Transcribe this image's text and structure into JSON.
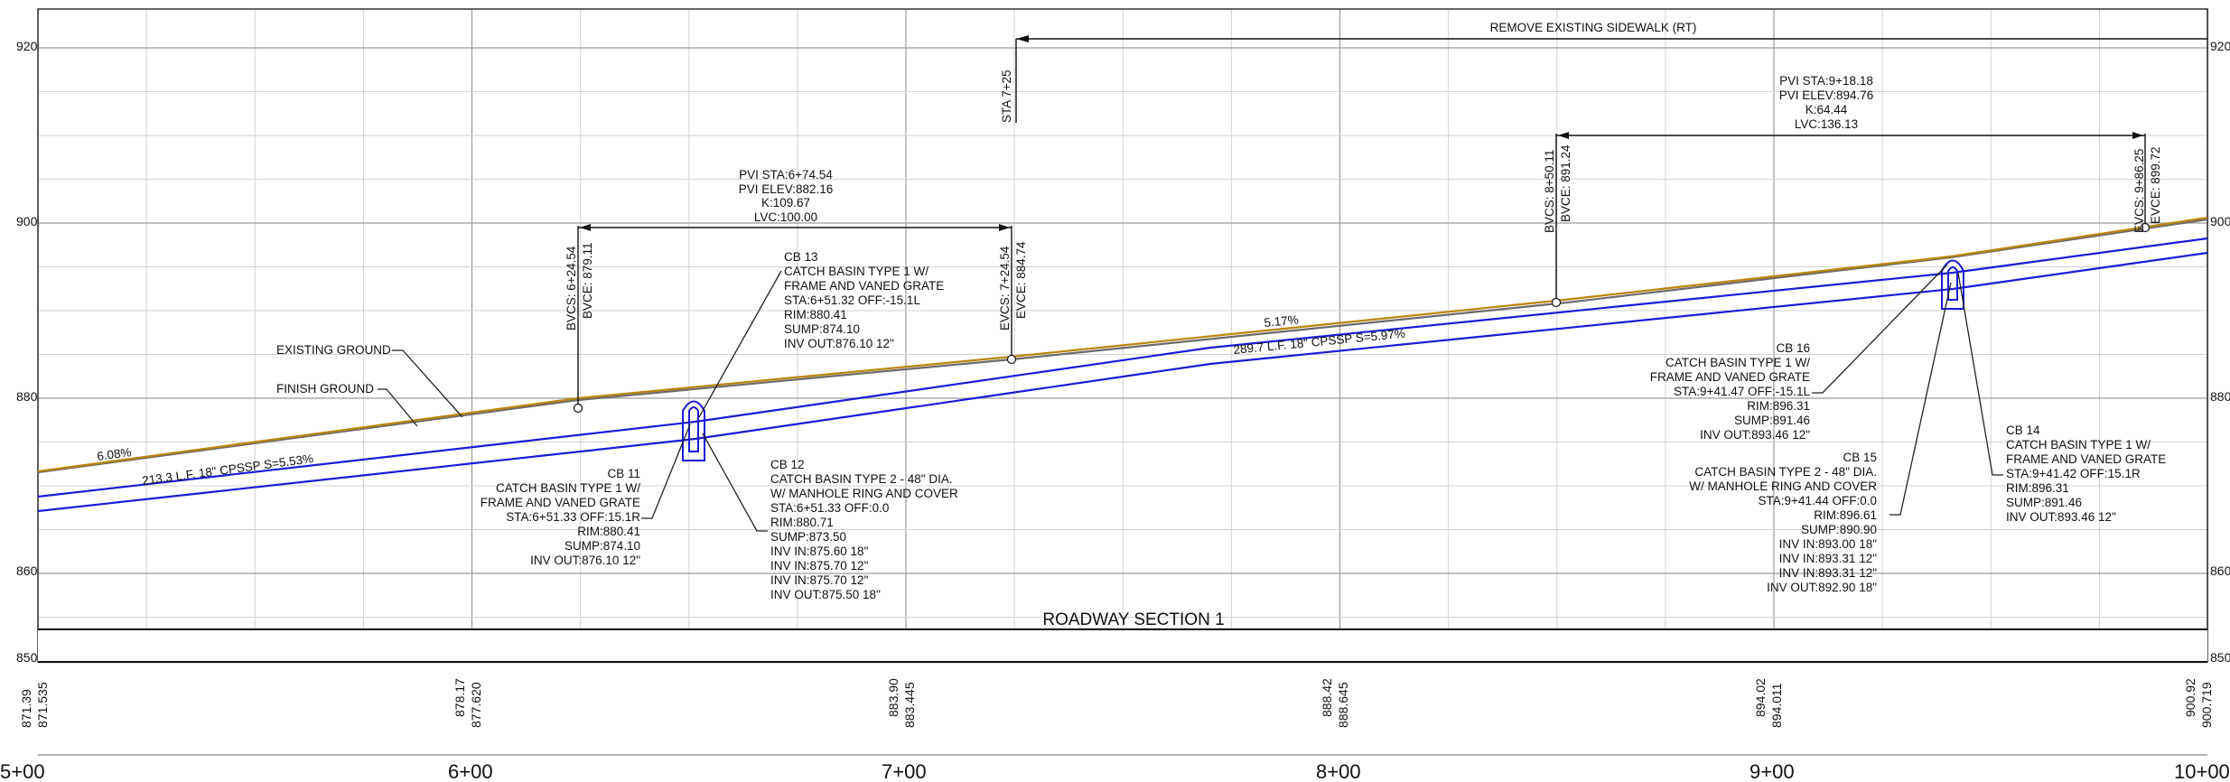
{
  "profile": {
    "section_title": "ROADWAY SECTION 1",
    "sidewalk_note": "REMOVE EXISTING SIDEWALK (RT)",
    "sta_marker": "STA 7+25",
    "elevations": [
      920,
      900,
      880,
      860,
      850
    ],
    "stations": [
      "5+00",
      "6+00",
      "7+00",
      "8+00",
      "9+00",
      "10+00"
    ],
    "station_values": [
      {
        "existing": "871.39",
        "proposed": "871.535"
      },
      {
        "existing": "878.17",
        "proposed": "877.620"
      },
      {
        "existing": "883.90",
        "proposed": "883.445"
      },
      {
        "existing": "888.42",
        "proposed": "888.645"
      },
      {
        "existing": "894.02",
        "proposed": "894.011"
      },
      {
        "existing": "900.92",
        "proposed": "900.719"
      }
    ],
    "grades": {
      "start": "6.08%",
      "mid": "5.17%"
    },
    "pipes": {
      "first": "213.3 L.F. 18\" CPSSP  S=5.53%",
      "second": "289.7 L.F. 18\" CPSSP  S=5.97%"
    },
    "ground_labels": {
      "existing": "EXISTING GROUND",
      "finish": "FINISH GROUND"
    },
    "curves": [
      {
        "bvc": [
          "BVCS: 6+24.54",
          "BVCE: 879.11"
        ],
        "evc": [
          "EVCS: 7+24.54",
          "EVCE: 884.74"
        ],
        "pvi": [
          "PVI STA:6+74.54",
          "PVI ELEV:882.16",
          "K:109.67",
          "LVC:100.00"
        ]
      },
      {
        "bvc": [
          "BVCS: 8+50.11",
          "BVCE: 891.24"
        ],
        "evc": [
          "EVCS: 9+86.25",
          "EVCE: 899.72"
        ],
        "pvi": [
          "PVI STA:9+18.18",
          "PVI ELEV:894.76",
          "K:64.44",
          "LVC:136.13"
        ]
      }
    ],
    "structures": {
      "cb13": [
        "CB 13",
        "CATCH BASIN TYPE 1 W/",
        "FRAME AND VANED GRATE",
        "STA:6+51.32 OFF:-15.1L",
        "RIM:880.41",
        "SUMP:874.10",
        "INV OUT:876.10 12\""
      ],
      "cb11": [
        "CB 11",
        "CATCH BASIN TYPE 1 W/",
        "FRAME AND VANED GRATE",
        "STA:6+51.33 OFF:15.1R",
        "RIM:880.41",
        "SUMP:874.10",
        "INV OUT:876.10 12\""
      ],
      "cb12": [
        "CB 12",
        "CATCH BASIN TYPE 2 - 48\" DIA.",
        "W/ MANHOLE RING AND COVER",
        "STA:6+51.33 OFF:0.0",
        "RIM:880.71",
        "SUMP:873.50",
        "INV IN:875.60 18\"",
        "INV IN:875.70 12\"",
        "INV IN:875.70 12\"",
        "INV OUT:875.50 18\""
      ],
      "cb16": [
        "CB 16",
        "CATCH BASIN TYPE 1 W/",
        "FRAME AND VANED GRATE",
        "STA:9+41.47 OFF:-15.1L",
        "RIM:896.31",
        "SUMP:891.46",
        "INV OUT:893.46 12\""
      ],
      "cb15": [
        "CB 15",
        "CATCH BASIN TYPE 2 - 48\" DIA.",
        "W/ MANHOLE RING AND COVER",
        "STA:9+41.44 OFF:0.0",
        "RIM:896.61",
        "SUMP:890.90",
        "INV IN:893.00 18\"",
        "INV IN:893.31 12\"",
        "INV IN:893.31 12\"",
        "INV OUT:892.90 18\""
      ],
      "cb14": [
        "CB 14",
        "CATCH BASIN TYPE 1 W/",
        "FRAME AND VANED GRATE",
        "STA:9+41.42 OFF:15.1R",
        "RIM:896.31",
        "SUMP:891.46",
        "INV OUT:893.46 12\""
      ]
    },
    "colors": {
      "pipe": "#1a1ad6",
      "existing_ground": "#6b6b6b",
      "finish_ground": "#b8860b",
      "grid": "#d2d2d2"
    }
  }
}
